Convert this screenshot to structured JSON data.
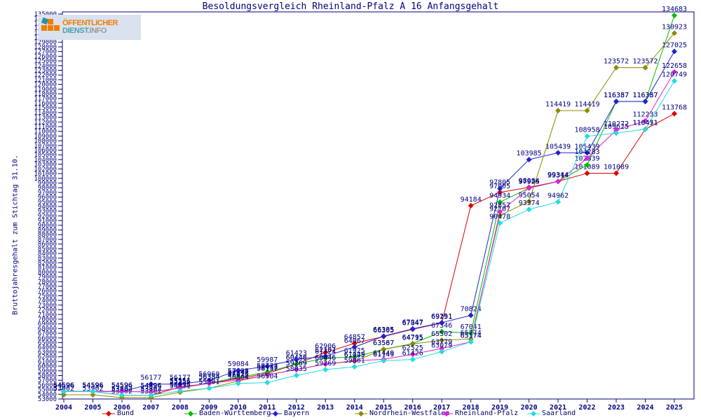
{
  "title": "Besoldungsvergleich Rheinland-Pfalz A 16 Anfangsgehalt",
  "y_axis_label": "Bruttojahresgehalt zum Stichtag 31.10.",
  "logo": {
    "top": "ÖFFENTLICHER",
    "brand": "DIENST",
    "suffix": ".INFO"
  },
  "colors": {
    "axis_text": "#000080",
    "axis_line": "#000080",
    "title_text": "#000080",
    "point_label": "#000080",
    "legend_text": "#000066",
    "logo_orange": "#f07d00",
    "logo_teal": "#2e8fa3",
    "logo_bg": "#d9e2ee"
  },
  "chart_data": {
    "type": "line",
    "x": [
      2004,
      2005,
      2006,
      2007,
      2008,
      2009,
      2010,
      2011,
      2012,
      2013,
      2014,
      2015,
      2016,
      2017,
      2018,
      2019,
      2020,
      2021,
      2022,
      2023,
      2024,
      2025
    ],
    "xlabel": "",
    "ylabel": "Bruttojahresgehalt zum Stichtag 31.10.",
    "ylim": [
      53000,
      135000
    ],
    "ytick_step": 1000,
    "grid": false,
    "legend_position": "bottom",
    "point_labels": true,
    "series": [
      {
        "name": "Bund",
        "color": "#dd0000",
        "values": [
          54596,
          54596,
          53802,
          53802,
          55551,
          56334,
          57347,
          58433,
          60448,
          62906,
          64857,
          66305,
          67847,
          69191,
          94184,
          97005,
          98084,
          99344,
          101089,
          101089,
          110451,
          113768
        ]
      },
      {
        "name": "Baden-Württemberg",
        "color": "#00bb00",
        "values": [
          54596,
          54596,
          54596,
          54496,
          55356,
          56384,
          57608,
          58722,
          60446,
          61724,
          61925,
          63587,
          64795,
          67346,
          67041,
          94934,
          97926,
          99344,
          102839,
          116387,
          116387,
          134683
        ]
      },
      {
        "name": "Bayern",
        "color": "#2222cc",
        "values": [
          54596,
          54596,
          54596,
          56177,
          56177,
          56960,
          59084,
          59987,
          61423,
          62107,
          64067,
          66385,
          67947,
          69251,
          70824,
          97805,
          103985,
          105439,
          105439,
          116357,
          116357,
          127025
        ]
      },
      {
        "name": "Nordrhein-Westfalen",
        "color": "#8b8b00",
        "values": [
          53902,
          53902,
          53302,
          53302,
          54431,
          55301,
          56822,
          58137,
          59269,
          60446,
          61025,
          63567,
          64715,
          65502,
          65774,
          92107,
          95054,
          114419,
          114419,
          123572,
          123572,
          130923
        ]
      },
      {
        "name": "Rheinland-Pfalz",
        "color": "#dd22dd",
        "values": [
          54596,
          54596,
          54596,
          54496,
          55356,
          56334,
          57016,
          58137,
          59269,
          60446,
          61149,
          61449,
          62525,
          63779,
          65174,
          92857,
          97926,
          99314,
          104283,
          110272,
          112233,
          122658
        ]
      },
      {
        "name": "Saarland",
        "color": "#22dddd",
        "values": [
          54596,
          54596,
          53802,
          53802,
          54696,
          55301,
          56304,
          56504,
          58035,
          59269,
          59861,
          61149,
          61426,
          63079,
          65174,
          90478,
          93374,
          94962,
          108958,
          109625,
          110471,
          120749
        ]
      }
    ]
  },
  "legend_items": [
    "Bund",
    "Baden-Württemberg",
    "Bayern",
    "Nordrhein-Westfalen",
    "Rheinland-Pfalz",
    "Saarland"
  ]
}
